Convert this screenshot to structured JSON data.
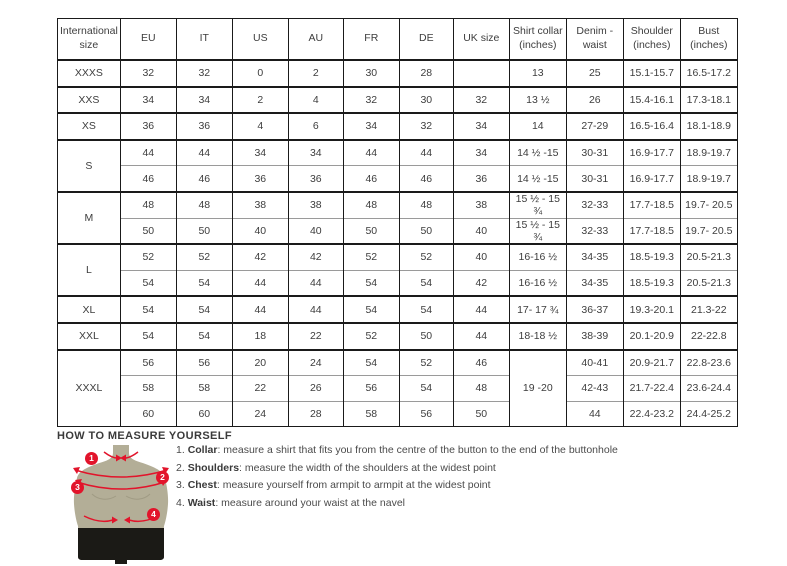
{
  "colors": {
    "accent_red": "#e2142b",
    "figure_torso": "#b3ae97",
    "figure_shorts": "#1b1a16",
    "table_border": "#1a1a1a",
    "table_inner_line": "#9a9a9a"
  },
  "size_table": {
    "columns": [
      "International size",
      "EU",
      "IT",
      "US",
      "AU",
      "FR",
      "DE",
      "UK size",
      "Shirt collar (inches)",
      "Denim - waist",
      "Shoulder (inches)",
      "Bust (inches)"
    ],
    "rows": [
      {
        "group_start": true,
        "cells": [
          {
            "t": "XXXS",
            "size": true
          },
          {
            "t": "32"
          },
          {
            "t": "32"
          },
          {
            "t": "0"
          },
          {
            "t": "2"
          },
          {
            "t": "30"
          },
          {
            "t": "28"
          },
          {
            "t": ""
          },
          {
            "t": "13"
          },
          {
            "t": "25"
          },
          {
            "t": "15.1-15.7"
          },
          {
            "t": "16.5-17.2"
          }
        ]
      },
      {
        "group_start": true,
        "cells": [
          {
            "t": "XXS",
            "size": true
          },
          {
            "t": "34"
          },
          {
            "t": "34"
          },
          {
            "t": "2"
          },
          {
            "t": "4"
          },
          {
            "t": "32"
          },
          {
            "t": "30"
          },
          {
            "t": "32"
          },
          {
            "t": "13 ½"
          },
          {
            "t": "26"
          },
          {
            "t": "15.4-16.1"
          },
          {
            "t": "17.3-18.1"
          }
        ]
      },
      {
        "group_start": true,
        "cells": [
          {
            "t": "XS",
            "size": true
          },
          {
            "t": "36"
          },
          {
            "t": "36"
          },
          {
            "t": "4"
          },
          {
            "t": "6"
          },
          {
            "t": "34"
          },
          {
            "t": "32"
          },
          {
            "t": "34"
          },
          {
            "t": "14"
          },
          {
            "t": "27-29"
          },
          {
            "t": "16.5-16.4"
          },
          {
            "t": "18.1-18.9"
          }
        ]
      },
      {
        "group_start": true,
        "cells": [
          {
            "t": "S",
            "size": true,
            "rs": 2
          },
          {
            "t": "44"
          },
          {
            "t": "44"
          },
          {
            "t": "34"
          },
          {
            "t": "34"
          },
          {
            "t": "44"
          },
          {
            "t": "44"
          },
          {
            "t": "34"
          },
          {
            "t": "14 ½ -15"
          },
          {
            "t": "30-31"
          },
          {
            "t": "16.9-17.7"
          },
          {
            "t": "18.9-19.7"
          }
        ]
      },
      {
        "group_start": false,
        "cells": [
          {
            "t": "46"
          },
          {
            "t": "46"
          },
          {
            "t": "36"
          },
          {
            "t": "36"
          },
          {
            "t": "46"
          },
          {
            "t": "46"
          },
          {
            "t": "36"
          },
          {
            "t": "14 ½ -15"
          },
          {
            "t": "30-31"
          },
          {
            "t": "16.9-17.7"
          },
          {
            "t": "18.9-19.7"
          }
        ]
      },
      {
        "group_start": true,
        "cells": [
          {
            "t": "M",
            "size": true,
            "rs": 2
          },
          {
            "t": "48"
          },
          {
            "t": "48"
          },
          {
            "t": "38"
          },
          {
            "t": "38"
          },
          {
            "t": "48"
          },
          {
            "t": "48"
          },
          {
            "t": "38"
          },
          {
            "t": "15 ½ - 15 ¾"
          },
          {
            "t": "32-33"
          },
          {
            "t": "17.7-18.5"
          },
          {
            "t": "19.7- 20.5"
          }
        ]
      },
      {
        "group_start": false,
        "cells": [
          {
            "t": "50"
          },
          {
            "t": "50"
          },
          {
            "t": "40"
          },
          {
            "t": "40"
          },
          {
            "t": "50"
          },
          {
            "t": "50"
          },
          {
            "t": "40"
          },
          {
            "t": "15 ½ - 15 ¾"
          },
          {
            "t": "32-33"
          },
          {
            "t": "17.7-18.5"
          },
          {
            "t": "19.7- 20.5"
          }
        ]
      },
      {
        "group_start": true,
        "cells": [
          {
            "t": "L",
            "size": true,
            "rs": 2
          },
          {
            "t": "52"
          },
          {
            "t": "52"
          },
          {
            "t": "42"
          },
          {
            "t": "42"
          },
          {
            "t": "52"
          },
          {
            "t": "52"
          },
          {
            "t": "40"
          },
          {
            "t": "16-16 ½"
          },
          {
            "t": "34-35"
          },
          {
            "t": "18.5-19.3"
          },
          {
            "t": "20.5-21.3"
          }
        ]
      },
      {
        "group_start": false,
        "cells": [
          {
            "t": "54"
          },
          {
            "t": "54"
          },
          {
            "t": "44"
          },
          {
            "t": "44"
          },
          {
            "t": "54"
          },
          {
            "t": "54"
          },
          {
            "t": "42"
          },
          {
            "t": "16-16 ½"
          },
          {
            "t": "34-35"
          },
          {
            "t": "18.5-19.3"
          },
          {
            "t": "20.5-21.3"
          }
        ]
      },
      {
        "group_start": true,
        "cells": [
          {
            "t": "XL",
            "size": true
          },
          {
            "t": "54"
          },
          {
            "t": "54"
          },
          {
            "t": "44"
          },
          {
            "t": "44"
          },
          {
            "t": "54"
          },
          {
            "t": "54"
          },
          {
            "t": "44"
          },
          {
            "t": "17- 17 ¾"
          },
          {
            "t": "36-37"
          },
          {
            "t": "19.3-20.1"
          },
          {
            "t": "21.3-22"
          }
        ]
      },
      {
        "group_start": true,
        "cells": [
          {
            "t": "XXL",
            "size": true
          },
          {
            "t": "54"
          },
          {
            "t": "54"
          },
          {
            "t": "18"
          },
          {
            "t": "22"
          },
          {
            "t": "52"
          },
          {
            "t": "50"
          },
          {
            "t": "44"
          },
          {
            "t": "18-18 ½"
          },
          {
            "t": "38-39"
          },
          {
            "t": "20.1-20.9"
          },
          {
            "t": "22-22.8"
          }
        ]
      },
      {
        "group_start": true,
        "cells": [
          {
            "t": "XXXL",
            "size": true,
            "rs": 3
          },
          {
            "t": "56"
          },
          {
            "t": "56"
          },
          {
            "t": "20"
          },
          {
            "t": "24"
          },
          {
            "t": "54"
          },
          {
            "t": "52"
          },
          {
            "t": "46"
          },
          {
            "t": "19 -20",
            "rs": 3
          },
          {
            "t": "40-41"
          },
          {
            "t": "20.9-21.7"
          },
          {
            "t": "22.8-23.6"
          }
        ]
      },
      {
        "group_start": false,
        "cells": [
          {
            "t": "58"
          },
          {
            "t": "58"
          },
          {
            "t": "22"
          },
          {
            "t": "26"
          },
          {
            "t": "56"
          },
          {
            "t": "54"
          },
          {
            "t": "48"
          },
          {
            "t": "42-43"
          },
          {
            "t": "21.7-22.4"
          },
          {
            "t": "23.6-24.4"
          }
        ]
      },
      {
        "group_start": false,
        "cells": [
          {
            "t": "60"
          },
          {
            "t": "60"
          },
          {
            "t": "24"
          },
          {
            "t": "28"
          },
          {
            "t": "58"
          },
          {
            "t": "56"
          },
          {
            "t": "50"
          },
          {
            "t": "44"
          },
          {
            "t": "22.4-23.2"
          },
          {
            "t": "24.4-25.2"
          }
        ]
      }
    ]
  },
  "measure_guide": {
    "title": "HOW TO MEASURE YOURSELF",
    "markers": [
      "1",
      "2",
      "3",
      "4"
    ],
    "steps": [
      {
        "num": "1.",
        "label": "Collar",
        "text": ": measure a shirt that fits you from the centre of the button to the end of the buttonhole"
      },
      {
        "num": "2.",
        "label": "Shoulders",
        "text": ": measure the width of the shoulders at the widest point"
      },
      {
        "num": "3.",
        "label": "Chest",
        "text": ": measure yourself from armpit to armpit at the widest point"
      },
      {
        "num": "4.",
        "label": "Waist",
        "text": ": measure around your waist at the navel"
      }
    ]
  }
}
